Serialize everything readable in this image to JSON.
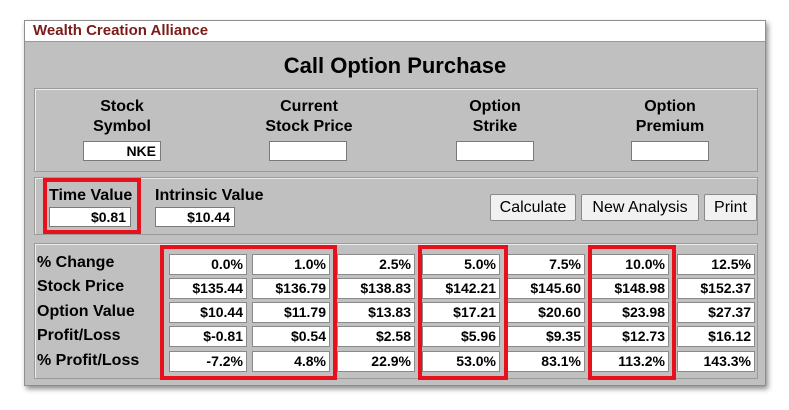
{
  "app": {
    "brand": "Wealth Creation Alliance",
    "title": "Call Option Purchase"
  },
  "inputs": {
    "stock_symbol": {
      "label_line1": "Stock",
      "label_line2": "Symbol",
      "value": "NKE"
    },
    "current_price": {
      "label_line1": "Current",
      "label_line2": "Stock Price",
      "value": ""
    },
    "option_strike": {
      "label_line1": "Option",
      "label_line2": "Strike",
      "value": ""
    },
    "option_premium": {
      "label_line1": "Option",
      "label_line2": "Premium",
      "value": ""
    }
  },
  "values": {
    "time_value_label": "Time Value",
    "time_value": "$0.81",
    "intrinsic_value_label": "Intrinsic Value",
    "intrinsic_value": "$10.44"
  },
  "buttons": {
    "calculate": "Calculate",
    "new_analysis": "New Analysis",
    "print": "Print"
  },
  "table": {
    "row_labels": [
      "% Change",
      "Stock Price",
      "Option Value",
      "Profit/Loss",
      "% Profit/Loss"
    ],
    "columns": [
      [
        "0.0%",
        "$135.44",
        "$10.44",
        "$-0.81",
        "-7.2%"
      ],
      [
        "1.0%",
        "$136.79",
        "$11.79",
        "$0.54",
        "4.8%"
      ],
      [
        "2.5%",
        "$138.83",
        "$13.83",
        "$2.58",
        "22.9%"
      ],
      [
        "5.0%",
        "$142.21",
        "$17.21",
        "$5.96",
        "53.0%"
      ],
      [
        "7.5%",
        "$145.60",
        "$20.60",
        "$9.35",
        "83.1%"
      ],
      [
        "10.0%",
        "$148.98",
        "$23.98",
        "$12.73",
        "113.2%"
      ],
      [
        "12.5%",
        "$152.37",
        "$27.37",
        "$16.12",
        "143.3%"
      ]
    ]
  },
  "colors": {
    "highlight": "#e8101c",
    "brand": "#7a1c18",
    "panel_bg": "#c0c0c0"
  }
}
